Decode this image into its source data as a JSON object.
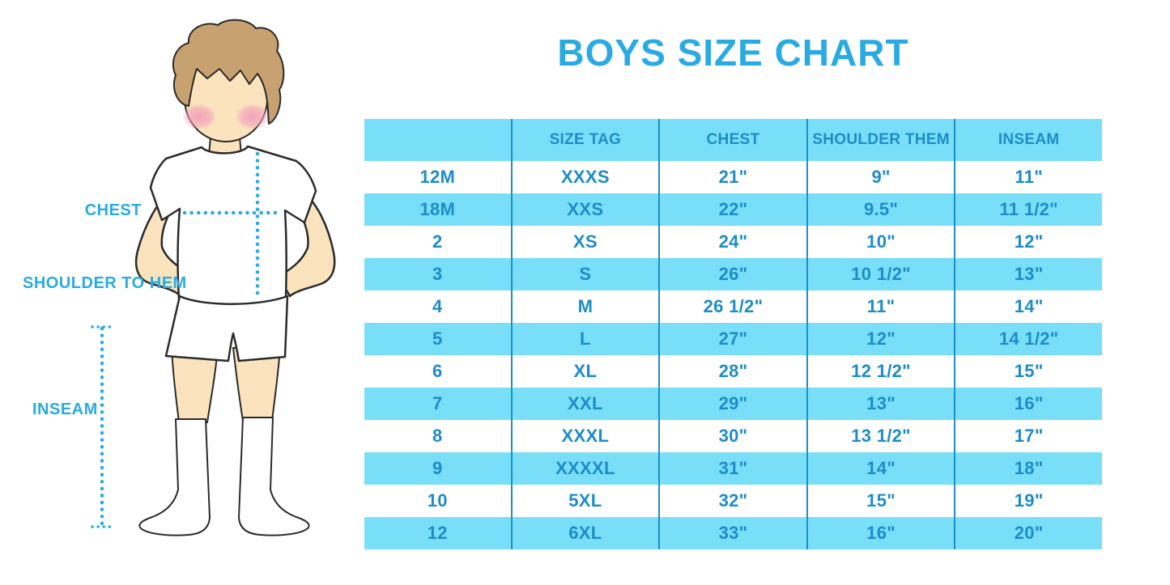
{
  "title": "BOYS SIZE CHART",
  "measurement_labels": {
    "chest": "CHEST",
    "shoulder_to_hem": "SHOULDER TO HEM",
    "inseam": "INSEAM"
  },
  "table": {
    "headers": [
      "",
      "SIZE TAG",
      "CHEST",
      "SHOULDER THEM",
      "INSEAM"
    ],
    "rows": [
      [
        "12M",
        "XXXS",
        "21\"",
        "9\"",
        "11\""
      ],
      [
        "18M",
        "XXS",
        "22\"",
        "9.5\"",
        "11 1/2\""
      ],
      [
        "2",
        "XS",
        "24\"",
        "10\"",
        "12\""
      ],
      [
        "3",
        "S",
        "26\"",
        "10 1/2\"",
        "13\""
      ],
      [
        "4",
        "M",
        "26 1/2\"",
        "11\"",
        "14\""
      ],
      [
        "5",
        "L",
        "27\"",
        "12\"",
        "14 1/2\""
      ],
      [
        "6",
        "XL",
        "28\"",
        "12 1/2\"",
        "15\""
      ],
      [
        "7",
        "XXL",
        "29\"",
        "13\"",
        "16\""
      ],
      [
        "8",
        "XXXL",
        "30\"",
        "13 1/2\"",
        "17\""
      ],
      [
        "9",
        "XXXXL",
        "31\"",
        "14\"",
        "18\""
      ],
      [
        "10",
        "5XL",
        "32\"",
        "15\"",
        "19\""
      ],
      [
        "12",
        "6XL",
        "33\"",
        "16\"",
        "20\""
      ]
    ]
  },
  "colors": {
    "accent_blue": "#29ABE2",
    "table_stripe": "#79DFF8",
    "table_divider": "#1D8FC4",
    "table_text": "#1E8CC8",
    "skin": "#FAE3BD",
    "hair": "#C7A170",
    "blush": "#F2A8C0",
    "outline": "#2B2B2B"
  },
  "illustration": {
    "description": "boy-figure-with-measurement-guides",
    "dotted_guides": [
      "chest-line",
      "shoulder-to-hem-line",
      "inseam-line"
    ]
  }
}
